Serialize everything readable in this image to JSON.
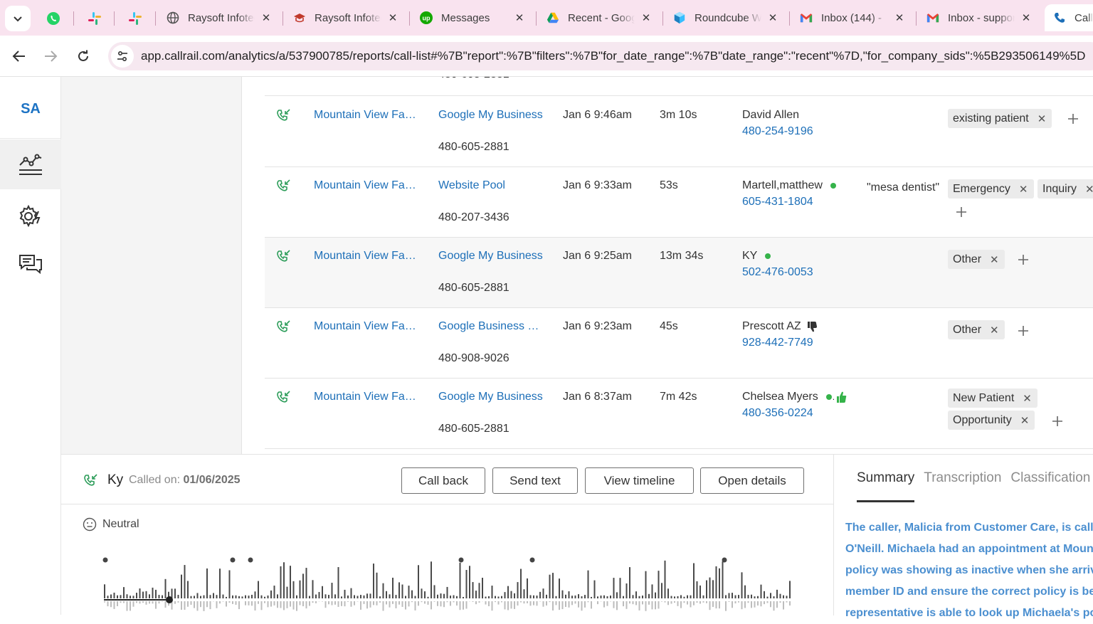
{
  "browser": {
    "tabs": [
      {
        "title": "Raysoft Infotech",
        "favicon": "globe-icon"
      },
      {
        "title": "Raysoft Infotech",
        "favicon": "graduation-cap-icon"
      },
      {
        "title": "Messages",
        "favicon": "upwork-icon"
      },
      {
        "title": "Recent - Google Drive",
        "favicon": "google-drive-icon"
      },
      {
        "title": "Roundcube Webmail",
        "favicon": "roundcube-icon"
      },
      {
        "title": "Inbox (144) - ",
        "favicon": "gmail-icon"
      },
      {
        "title": "Inbox - support",
        "favicon": "gmail-icon"
      },
      {
        "title": "Call",
        "favicon": "callrail-icon"
      }
    ],
    "url": "app.callrail.com/analytics/a/537900785/reports/call-list#%7B\"report\":%7B\"filters\":%7B\"for_date_range\":%7B\"date_range\":\"recent\"%7D,\"for_company_sids\":%5B293506149%5D"
  },
  "sidebar": {
    "logo": "SA"
  },
  "calls": {
    "partial_tracking": "480-605-2881",
    "rows": [
      {
        "company": "Mountain View Family Dental",
        "source": "Google My Business",
        "tracking": "480-605-2881",
        "time": "Jan 6 9:46am",
        "duration": "3m 10s",
        "name": "David Allen",
        "phone": "480-254-9196",
        "keyword": "",
        "tags": [
          "existing patient"
        ]
      },
      {
        "company": "Mountain View Family Dental",
        "source": "Website Pool",
        "tracking": "480-207-3436",
        "time": "Jan 6 9:33am",
        "duration": "53s",
        "name": "Martell,matthew",
        "phone": "605-431-1804",
        "keyword": "\"mesa dentist\"",
        "tags": [
          "Emergency",
          "Inquiry"
        ]
      },
      {
        "company": "Mountain View Family Dental",
        "source": "Google My Business",
        "tracking": "480-605-2881",
        "time": "Jan 6 9:25am",
        "duration": "13m 34s",
        "name": "KY",
        "phone": "502-476-0053",
        "keyword": "",
        "tags": [
          "Other"
        ]
      },
      {
        "company": "Mountain View Family Dental",
        "source": "Google Business Profile",
        "tracking": "480-908-9026",
        "time": "Jan 6 9:23am",
        "duration": "45s",
        "name": "Prescott AZ",
        "phone": "928-442-7749",
        "keyword": "",
        "tags": [
          "Other"
        ]
      },
      {
        "company": "Mountain View Family Dental",
        "source": "Google My Business",
        "tracking": "480-605-2881",
        "time": "Jan 6 8:37am",
        "duration": "7m 42s",
        "name": "Chelsea Myers",
        "phone": "480-356-0224",
        "keyword": "",
        "tags": [
          "New Patient",
          "Opportunity"
        ]
      }
    ]
  },
  "panel": {
    "caller": "Ky",
    "called_on_label": "Called on:",
    "called_on_date": "01/06/2025",
    "buttons": {
      "call_back": "Call back",
      "send_text": "Send text",
      "view_timeline": "View timeline",
      "open_details": "Open details"
    },
    "sentiment": "Neutral",
    "tabs": {
      "summary": "Summary",
      "transcription": "Transcription",
      "classification": "Classification"
    },
    "summary_lines": [
      "The caller, Malicia from Customer Care, is calling",
      "O'Neill. Michaela had an appointment at Mountain",
      "policy was showing as inactive when she arrived.",
      "member ID and ensure the correct policy is being",
      "representative is able to look up Michaela's policy"
    ]
  },
  "colors": {
    "link": "#1d6fb8",
    "summary": "#4b8fd0",
    "tab_strip": "#f9e3ef",
    "online_dot": "#35b34a"
  }
}
